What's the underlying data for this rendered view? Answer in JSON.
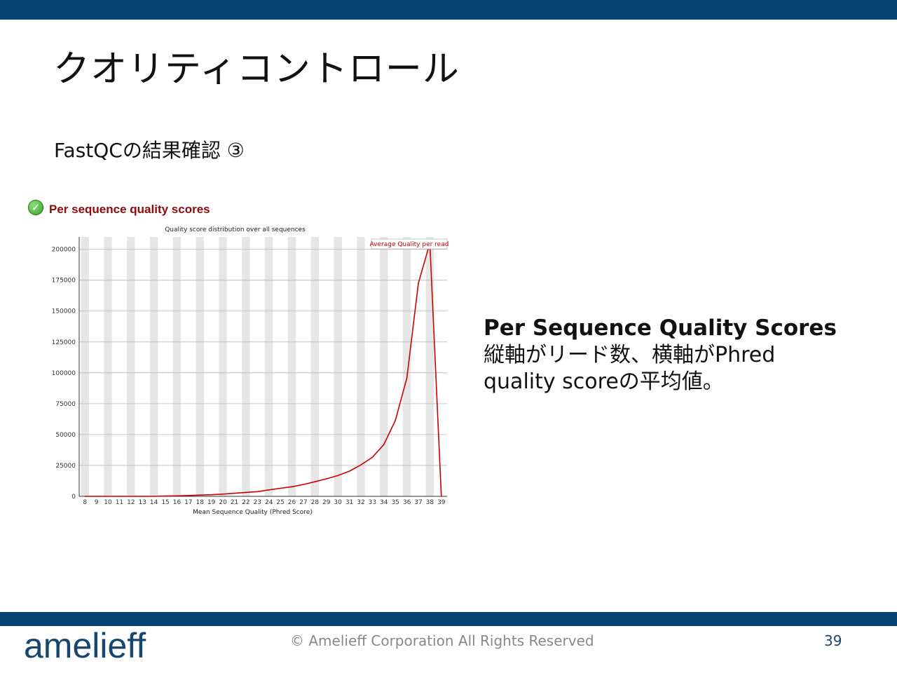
{
  "slide": {
    "title": "クオリティコントロール",
    "subtitle": "FastQCの結果確認 ③",
    "page_number": "39",
    "footer": "© Amelieff Corporation All Rights Reserved",
    "logo_text": "amelieff"
  },
  "section": {
    "label": "Per sequence quality scores",
    "status_icon": "check-icon"
  },
  "description": {
    "title": "Per Sequence Quality Scores",
    "line1": "縦軸がリード数、横軸がPhred",
    "line2": "quality scoreの平均値。"
  },
  "colors": {
    "bar": "#064372",
    "logo": "#16456f",
    "line": "#cc0000",
    "band": "#e6e6e6",
    "section_label": "#8b0a0a"
  },
  "chart_data": {
    "type": "line",
    "title": "Quality score distribution over all sequences",
    "xlabel": "Mean Sequence Quality (Phred Score)",
    "ylabel": "",
    "x": [
      8,
      9,
      10,
      11,
      12,
      13,
      14,
      15,
      16,
      17,
      18,
      19,
      20,
      21,
      22,
      23,
      24,
      25,
      26,
      27,
      28,
      29,
      30,
      31,
      32,
      33,
      34,
      35,
      36,
      37,
      38,
      39
    ],
    "series": [
      {
        "name": "Average Quality per read",
        "values": [
          0,
          0,
          0,
          0,
          0,
          0,
          0,
          200,
          400,
          700,
          1000,
          1300,
          1800,
          2500,
          3200,
          3800,
          5200,
          6500,
          7800,
          9600,
          11800,
          14200,
          16800,
          20400,
          25400,
          31600,
          42000,
          61500,
          95800,
          172500,
          205000,
          0
        ]
      }
    ],
    "ylim": [
      0,
      210000
    ],
    "yticks": [
      0,
      25000,
      50000,
      75000,
      100000,
      125000,
      150000,
      175000,
      200000
    ],
    "grid": true,
    "legend_placement": "top-right"
  }
}
